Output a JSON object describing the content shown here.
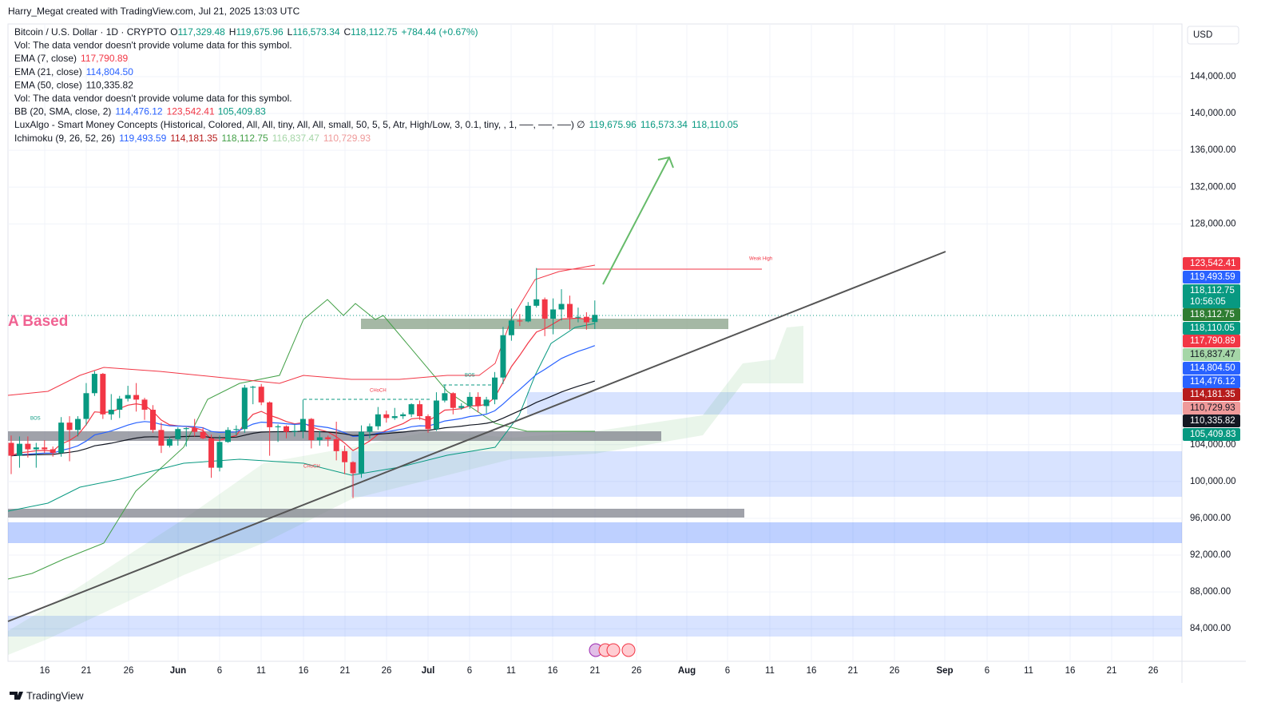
{
  "header": {
    "attribution": "Harry_Megat created with TradingView.com, Jul 21, 2025 13:03 UTC",
    "currency": "USD",
    "brand": "TradingView"
  },
  "legend": [
    [
      {
        "text": "Bitcoin / U.S. Dollar · 1D · CRYPTO"
      },
      {
        "text": "O"
      },
      {
        "text": "117,329.48",
        "color": "#089981"
      },
      {
        "text": "H"
      },
      {
        "text": "119,675.96",
        "color": "#089981"
      },
      {
        "text": "L"
      },
      {
        "text": "116,573.34",
        "color": "#089981"
      },
      {
        "text": "C"
      },
      {
        "text": "118,112.75",
        "color": "#089981"
      },
      {
        "text": "+784.44 (+0.67%)",
        "color": "#089981"
      }
    ],
    [
      {
        "text": "Vol: The data vendor doesn't provide volume data for this symbol."
      }
    ],
    [
      {
        "text": "EMA (7, close)"
      },
      {
        "text": "117,790.89",
        "color": "#f23645"
      }
    ],
    [
      {
        "text": "EMA (21, close)"
      },
      {
        "text": "114,804.50",
        "color": "#2962ff"
      }
    ],
    [
      {
        "text": "EMA (50, close)"
      },
      {
        "text": "110,335.82"
      }
    ],
    [
      {
        "text": "Vol: The data vendor doesn't provide volume data for this symbol."
      }
    ],
    [
      {
        "text": "BB (20, SMA, close, 2)"
      },
      {
        "text": "114,476.12",
        "color": "#2962ff"
      },
      {
        "text": "123,542.41",
        "color": "#f23645"
      },
      {
        "text": "105,409.83",
        "color": "#089981"
      }
    ],
    [
      {
        "text": "LuxAlgo - Smart Money Concepts (Historical, Colored, All, All, tiny, All, All, small, 50, 5, 5, Atr, High/Low, 3, 0.1, tiny, , 1, ──, ──, ──) ∅"
      },
      {
        "text": "119,675.96",
        "color": "#089981"
      },
      {
        "text": "116,573.34",
        "color": "#089981"
      },
      {
        "text": "118,110.05",
        "color": "#089981"
      }
    ],
    [
      {
        "text": "Ichimoku (9, 26, 52, 26)"
      },
      {
        "text": "119,493.59",
        "color": "#2962ff"
      },
      {
        "text": "114,181.35",
        "color": "#b71c1c"
      },
      {
        "text": "118,112.75",
        "color": "#43a047"
      },
      {
        "text": "116,837.47",
        "color": "#a5d6a7"
      },
      {
        "text": "110,729.93",
        "color": "#ef9a9a"
      }
    ]
  ],
  "price_labels": [
    {
      "text": "123,542.41",
      "color": "#f23645"
    },
    {
      "text": "119,493.59",
      "color": "#2962ff"
    },
    {
      "text": "118,112.75",
      "sub": "10:56:05",
      "color": "#089981"
    },
    {
      "text": "118,112.75",
      "color": "#2e7d32"
    },
    {
      "text": "118,110.05",
      "color": "#089981"
    },
    {
      "text": "117,790.89",
      "color": "#f23645"
    },
    {
      "text": "116,837.47",
      "color": "#a5d6a7",
      "dark": true
    },
    {
      "text": "114,804.50",
      "color": "#2962ff"
    },
    {
      "text": "114,476.12",
      "color": "#2962ff"
    },
    {
      "text": "114,181.35",
      "color": "#b71c1c"
    },
    {
      "text": "110,729.93",
      "color": "#ef9a9a",
      "dark": true
    },
    {
      "text": "110,335.82",
      "color": "#131722"
    },
    {
      "text": "105,409.83",
      "color": "#089981"
    }
  ],
  "annotations": {
    "based": "A Based",
    "weak_high": "Weak High",
    "bos": [
      "BOS",
      "BOS"
    ],
    "choch": [
      "CHoCH",
      "CHoCH"
    ]
  },
  "x_axis_labels": [
    "16",
    "21",
    "26",
    "Jun",
    "6",
    "11",
    "16",
    "21",
    "26",
    "Jul",
    "6",
    "11",
    "16",
    "21",
    "26",
    "Aug",
    "6",
    "11",
    "16",
    "21",
    "26",
    "Sep",
    "6",
    "11",
    "16",
    "21",
    "26"
  ],
  "chart_data": {
    "type": "candlestick",
    "up_color": "#089981",
    "down_color": "#f23645",
    "x": [
      "May 12",
      "May 13",
      "May 14",
      "May 15",
      "May 16",
      "May 17",
      "May 18",
      "May 19",
      "May 20",
      "May 21",
      "May 22",
      "May 23",
      "May 24",
      "May 25",
      "May 26",
      "May 27",
      "May 28",
      "May 29",
      "May 30",
      "May 31",
      "Jun 1",
      "Jun 2",
      "Jun 3",
      "Jun 4",
      "Jun 5",
      "Jun 6",
      "Jun 7",
      "Jun 8",
      "Jun 9",
      "Jun 10",
      "Jun 11",
      "Jun 12",
      "Jun 13",
      "Jun 14",
      "Jun 15",
      "Jun 16",
      "Jun 17",
      "Jun 18",
      "Jun 19",
      "Jun 20",
      "Jun 21",
      "Jun 22",
      "Jun 23",
      "Jun 24",
      "Jun 25",
      "Jun 26",
      "Jun 27",
      "Jun 28",
      "Jun 29",
      "Jun 30",
      "Jul 1",
      "Jul 2",
      "Jul 3",
      "Jul 4",
      "Jul 5",
      "Jul 6",
      "Jul 7",
      "Jul 8",
      "Jul 9",
      "Jul 10",
      "Jul 11",
      "Jul 12",
      "Jul 13",
      "Jul 14",
      "Jul 15",
      "Jul 16",
      "Jul 17",
      "Jul 18",
      "Jul 19",
      "Jul 20",
      "Jul 21"
    ],
    "open": [
      104200,
      102800,
      104100,
      103500,
      103700,
      103500,
      103100,
      106400,
      105600,
      106800,
      109600,
      111700,
      107300,
      107800,
      109000,
      109400,
      108900,
      107800,
      105600,
      103900,
      104600,
      105700,
      105800,
      105400,
      104700,
      101500,
      104300,
      105600,
      105700,
      110200,
      110300,
      108600,
      105900,
      106000,
      105400,
      105500,
      106800,
      104500,
      104800,
      104600,
      103300,
      102100,
      100900,
      105400,
      106000,
      107300,
      106900,
      107100,
      107300,
      108400,
      107100,
      105700,
      108800,
      109600,
      108000,
      108200,
      109200,
      108200,
      108900,
      111300,
      115900,
      117500,
      117400,
      119100,
      119800,
      117700,
      118700,
      119300,
      117800,
      117900,
      117329.48
    ],
    "high": [
      105000,
      104900,
      104900,
      104200,
      104500,
      103800,
      107000,
      107100,
      107100,
      110700,
      112000,
      111800,
      109500,
      109300,
      110400,
      110700,
      109100,
      108300,
      106400,
      104900,
      105900,
      105900,
      106800,
      105900,
      105100,
      105000,
      105900,
      106100,
      110500,
      110400,
      110600,
      108700,
      106200,
      106100,
      106200,
      108900,
      106900,
      105500,
      105000,
      106500,
      103900,
      102200,
      106100,
      106300,
      108100,
      107700,
      108000,
      107500,
      108500,
      108800,
      107300,
      109700,
      110500,
      109700,
      108500,
      109700,
      109700,
      109200,
      111900,
      116800,
      118800,
      118200,
      119500,
      123200,
      120000,
      119900,
      120900,
      120200,
      118900,
      118400,
      119675.96
    ],
    "low": [
      100800,
      101500,
      102600,
      101500,
      103100,
      102700,
      102700,
      102200,
      104900,
      106100,
      109300,
      106800,
      106700,
      106900,
      108700,
      107600,
      106700,
      105300,
      103100,
      103700,
      103900,
      103800,
      104900,
      104600,
      100400,
      101100,
      104200,
      105000,
      105300,
      108400,
      108300,
      102800,
      104300,
      104700,
      104900,
      104700,
      103600,
      103900,
      103800,
      102300,
      100800,
      98200,
      100400,
      104700,
      105600,
      106400,
      106700,
      106800,
      107000,
      106700,
      105300,
      105500,
      108600,
      107300,
      107800,
      107900,
      107500,
      107400,
      108400,
      110600,
      115300,
      116900,
      117300,
      118900,
      115800,
      116000,
      117500,
      116500,
      117300,
      116500,
      116573.34
    ],
    "close": [
      102800,
      104100,
      103500,
      103700,
      103500,
      103100,
      106400,
      105600,
      106800,
      109600,
      111700,
      107300,
      107800,
      109000,
      109400,
      108900,
      107800,
      105600,
      103900,
      104600,
      105700,
      105800,
      105400,
      104700,
      101500,
      104300,
      105600,
      105700,
      110200,
      110300,
      108600,
      105900,
      106000,
      105400,
      105500,
      106800,
      104500,
      104800,
      104600,
      103300,
      102100,
      100900,
      105400,
      106000,
      107300,
      106900,
      107100,
      107300,
      108400,
      107100,
      105700,
      108800,
      109600,
      108000,
      108200,
      109200,
      108200,
      108900,
      111300,
      115900,
      117500,
      117400,
      119100,
      119800,
      117700,
      118700,
      119300,
      117800,
      117900,
      117300,
      118112.75
    ],
    "ylim": [
      80000,
      151000
    ],
    "yticks": [
      {
        "value": 144000,
        "label": "144,000.00"
      },
      {
        "value": 140000,
        "label": "140,000.00"
      },
      {
        "value": 136000,
        "label": "136,000.00"
      },
      {
        "value": 132000,
        "label": "132,000.00"
      },
      {
        "value": 128000,
        "label": "128,000.00"
      },
      {
        "value": 104000,
        "label": "104,000.00"
      },
      {
        "value": 100000,
        "label": "100,000.00"
      },
      {
        "value": 96000,
        "label": "96,000.00"
      },
      {
        "value": 92000,
        "label": "92,000.00"
      },
      {
        "value": 88000,
        "label": "88,000.00"
      },
      {
        "value": 84000,
        "label": "84,000.00"
      }
    ],
    "grid": true
  }
}
